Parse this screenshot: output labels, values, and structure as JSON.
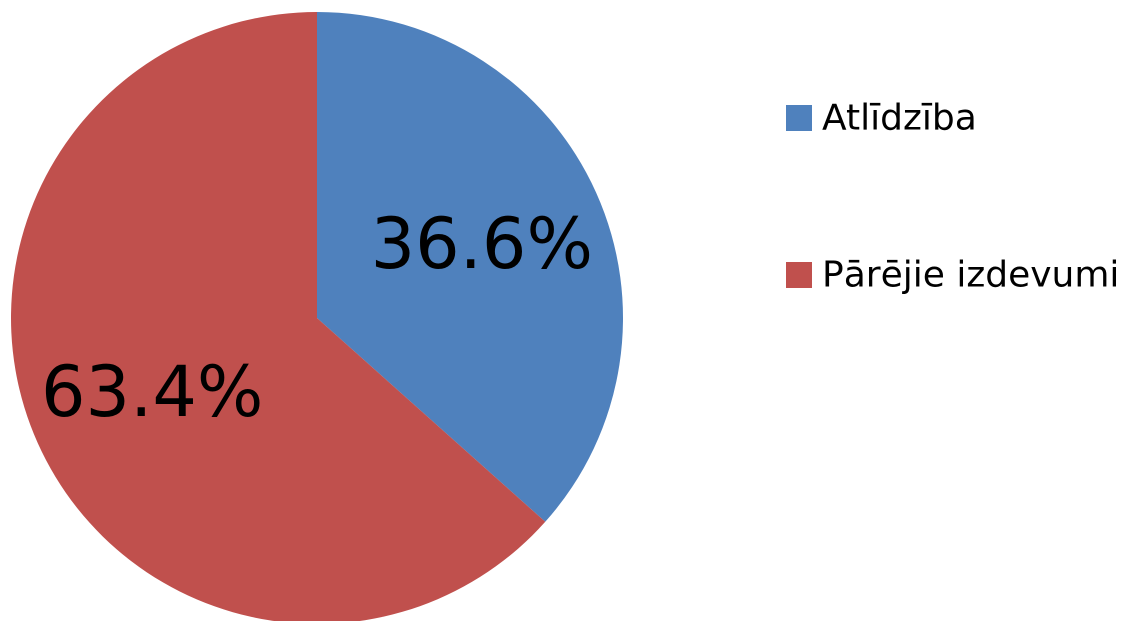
{
  "chart_data": {
    "type": "pie",
    "categories": [
      "Atlīdzība",
      "Pārējie izdevumi"
    ],
    "values": [
      36.6,
      63.4
    ],
    "data_labels": [
      "36.6%",
      "63.4%"
    ],
    "colors": [
      "#4F81BD",
      "#C0504D"
    ],
    "start_angle": "12 o'clock",
    "direction": "clockwise",
    "legend": {
      "position": "right",
      "items": [
        "Atlīdzība",
        "Pārējie izdevumi"
      ]
    }
  }
}
